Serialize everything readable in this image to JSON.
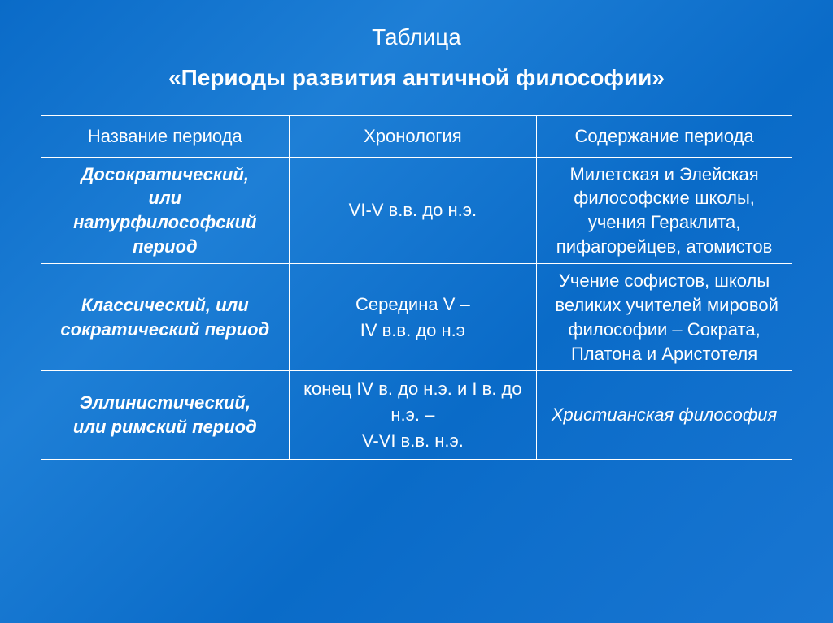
{
  "title": {
    "top": "Таблица",
    "main": "«Периоды развития античной философии»"
  },
  "table": {
    "columns": [
      "Название периода",
      "Хронология",
      "Содержание периода"
    ],
    "rows": [
      {
        "name_html": "<span class='period-name'>Досократический,<br>или<br>натурфилософский<br>период</span>",
        "chrono_html": "VI-V в.в. до н.э.",
        "content_html": "Милетская и Элейская философские школы, учения Гераклита, пифагорейцев, атомистов"
      },
      {
        "name_html": "<span class='period-name'>Классический</span><span class='period-name non-bold'>, или </span><span class='period-name'>сократический период</span>",
        "chrono_html": "Середина V –<br>IV в.в. до н.э",
        "content_html": "Учение софистов, школы &nbsp;великих учителей мировой философии – Сократа, Платона и Аристотеля"
      },
      {
        "name_html": "<span class='period-name'>Эллинистический,</span><br><span class='period-name non-bold'>или </span><span class='period-name'>римский период</span>",
        "chrono_html": "конец IV в. до н.э. и I в. до н.э. –<br>V-VI в.в. н.э.",
        "content_html": "<span class='content-italic'>Христианская философия</span>"
      }
    ]
  },
  "style": {
    "background_gradient": [
      "#0a6bc8",
      "#1e7fd6",
      "#0a6bc8",
      "#1976d2"
    ],
    "text_color": "#ffffff",
    "border_color": "#ffffff",
    "title_fontsize": 28,
    "cell_fontsize": 22,
    "font_family": "Arial"
  }
}
